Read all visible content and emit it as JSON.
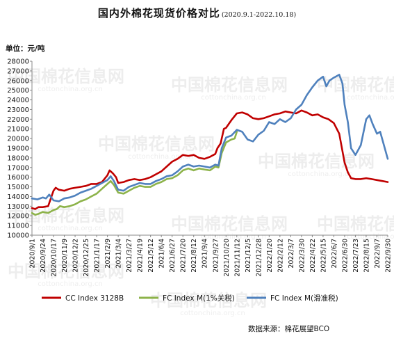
{
  "header": {
    "title": "国内外棉花现货价格对比",
    "subtitle": "(2020.9.1-2022.10.18)"
  },
  "unit_label": "单位：元/吨",
  "source": "数据来源：棉花展望BCO",
  "watermark": {
    "name": "中国棉花信息网",
    "url": "cottonchina.org.cn"
  },
  "chart_data": {
    "type": "line",
    "ylim": [
      10000,
      28000
    ],
    "yticks": [
      10000,
      11000,
      12000,
      13000,
      14000,
      15000,
      16000,
      17000,
      18000,
      19000,
      20000,
      21000,
      22000,
      23000,
      24000,
      25000,
      26000,
      27000,
      28000
    ],
    "xticks": [
      "2020/9/1",
      "2020/9/24",
      "2020/10/17",
      "2020/11/9",
      "2020/12/2",
      "2020/12/25",
      "2021/1/17",
      "2021/2/9",
      "2021/3/4",
      "2021/3/27",
      "2021/4/19",
      "2021/5/12",
      "2021/6/4",
      "2021/6/27",
      "2021/7/20",
      "2021/8/12",
      "2021/9/4",
      "2021/9/27",
      "2021/10/20",
      "2021/11/12",
      "2021/12/5",
      "2021/12/28",
      "2022/1/20",
      "2022/2/12",
      "2022/3/7",
      "2022/3/30",
      "2022/4/22",
      "2022/5/15",
      "2022/6/7",
      "2022/6/30",
      "2022/7/23",
      "2022/8/15",
      "2022/9/7",
      "2022/9/30"
    ],
    "x_index_range": [
      0,
      33
    ],
    "legend_position": "bottom",
    "grid": false,
    "series": [
      {
        "name": "CC Index 3128B",
        "color": "#c00000",
        "x": [
          0,
          0.3,
          0.6,
          1,
          1.5,
          2,
          2.2,
          2.5,
          3,
          3.5,
          4,
          4.5,
          5,
          5.5,
          6,
          6.5,
          7,
          7.2,
          7.5,
          7.8,
          8,
          8.5,
          9,
          9.5,
          10,
          10.5,
          11,
          11.5,
          12,
          12.5,
          13,
          13.5,
          14,
          14.5,
          15,
          15.5,
          16,
          16.5,
          17,
          17.2,
          17.5,
          17.8,
          18,
          18.5,
          19,
          19.5,
          20,
          20.5,
          21,
          21.5,
          22,
          22.5,
          23,
          23.5,
          24,
          24.5,
          25,
          25.5,
          26,
          26.5,
          27,
          27.5,
          28,
          28.5,
          29,
          29.3,
          29.6,
          30,
          30.5,
          31,
          31.5,
          32,
          32.5,
          33
        ],
        "values": [
          12800,
          12700,
          12900,
          12900,
          13000,
          14600,
          14900,
          14700,
          14600,
          14800,
          14900,
          15000,
          15100,
          15300,
          15300,
          15500,
          16200,
          16700,
          16400,
          16000,
          15400,
          15500,
          15700,
          15800,
          15700,
          15800,
          16000,
          16300,
          16600,
          17100,
          17600,
          17900,
          18300,
          18200,
          18300,
          18000,
          17900,
          18100,
          18400,
          19000,
          19500,
          21000,
          21100,
          21900,
          22600,
          22700,
          22500,
          22100,
          22000,
          22100,
          22300,
          22500,
          22600,
          22800,
          22700,
          22600,
          22900,
          22700,
          22400,
          22500,
          22200,
          22000,
          21600,
          20500,
          17500,
          16500,
          15900,
          15800,
          15800,
          15900,
          15800,
          15700,
          15600,
          15500
        ]
      },
      {
        "name": "FC Index M(1%关税)",
        "color": "#8db34a",
        "x": [
          0,
          0.3,
          0.6,
          1,
          1.5,
          2,
          2.3,
          2.6,
          3,
          3.5,
          4,
          4.5,
          5,
          5.5,
          6,
          6.5,
          7,
          7.3,
          7.6,
          8,
          8.5,
          9,
          9.5,
          10,
          10.5,
          11,
          11.5,
          12,
          12.5,
          13,
          13.5,
          14,
          14.5,
          15,
          15.5,
          16,
          16.5,
          17,
          17.3,
          17.6,
          18,
          18.5,
          18.8,
          19
        ],
        "values": [
          12300,
          12100,
          12200,
          12400,
          12300,
          12600,
          12700,
          13000,
          12900,
          13000,
          13200,
          13500,
          13700,
          14000,
          14300,
          14800,
          15300,
          15600,
          15200,
          14400,
          14300,
          14600,
          14900,
          15100,
          15000,
          15000,
          15300,
          15500,
          15800,
          15900,
          16200,
          16700,
          16900,
          16700,
          16900,
          16800,
          16700,
          17100,
          17000,
          18500,
          19600,
          19900,
          20000,
          20700
        ]
      },
      {
        "name": "FC Index M(滑准税)",
        "color": "#4f81bd",
        "x": [
          0,
          0.5,
          1,
          1.3,
          1.6,
          2,
          2.5,
          3,
          3.5,
          4,
          4.5,
          5,
          5.5,
          6,
          6.5,
          7,
          7.3,
          7.6,
          8,
          8.5,
          9,
          9.5,
          10,
          10.5,
          11,
          11.5,
          12,
          12.5,
          13,
          13.5,
          14,
          14.5,
          15,
          15.5,
          16,
          16.5,
          17,
          17.3,
          17.6,
          18,
          18.5,
          19,
          19.5,
          20,
          20.5,
          21,
          21.5,
          22,
          22.5,
          23,
          23.5,
          24,
          24.5,
          25,
          25.5,
          26,
          26.5,
          27,
          27.3,
          27.6,
          28,
          28.5,
          28.8,
          29,
          29.3,
          29.6,
          30,
          30.5,
          31,
          31.3,
          31.6,
          32,
          32.3,
          32.6,
          33
        ],
        "values": [
          13800,
          13700,
          13900,
          13800,
          14200,
          13600,
          13500,
          13800,
          13900,
          14100,
          14400,
          14600,
          14800,
          15100,
          15400,
          15700,
          16100,
          15600,
          14700,
          14600,
          15000,
          15200,
          15400,
          15300,
          15300,
          15600,
          15800,
          16100,
          16200,
          16600,
          17100,
          17300,
          17100,
          17200,
          17100,
          17000,
          17300,
          17200,
          19000,
          20100,
          20300,
          20900,
          20700,
          19900,
          19700,
          20400,
          20800,
          21700,
          21500,
          22000,
          21700,
          22100,
          23000,
          23500,
          24500,
          25300,
          26000,
          26400,
          25400,
          26000,
          26300,
          26600,
          25700,
          23500,
          21700,
          19000,
          18300,
          19300,
          22000,
          22400,
          21500,
          20500,
          20700,
          19500,
          17900
        ]
      }
    ]
  }
}
